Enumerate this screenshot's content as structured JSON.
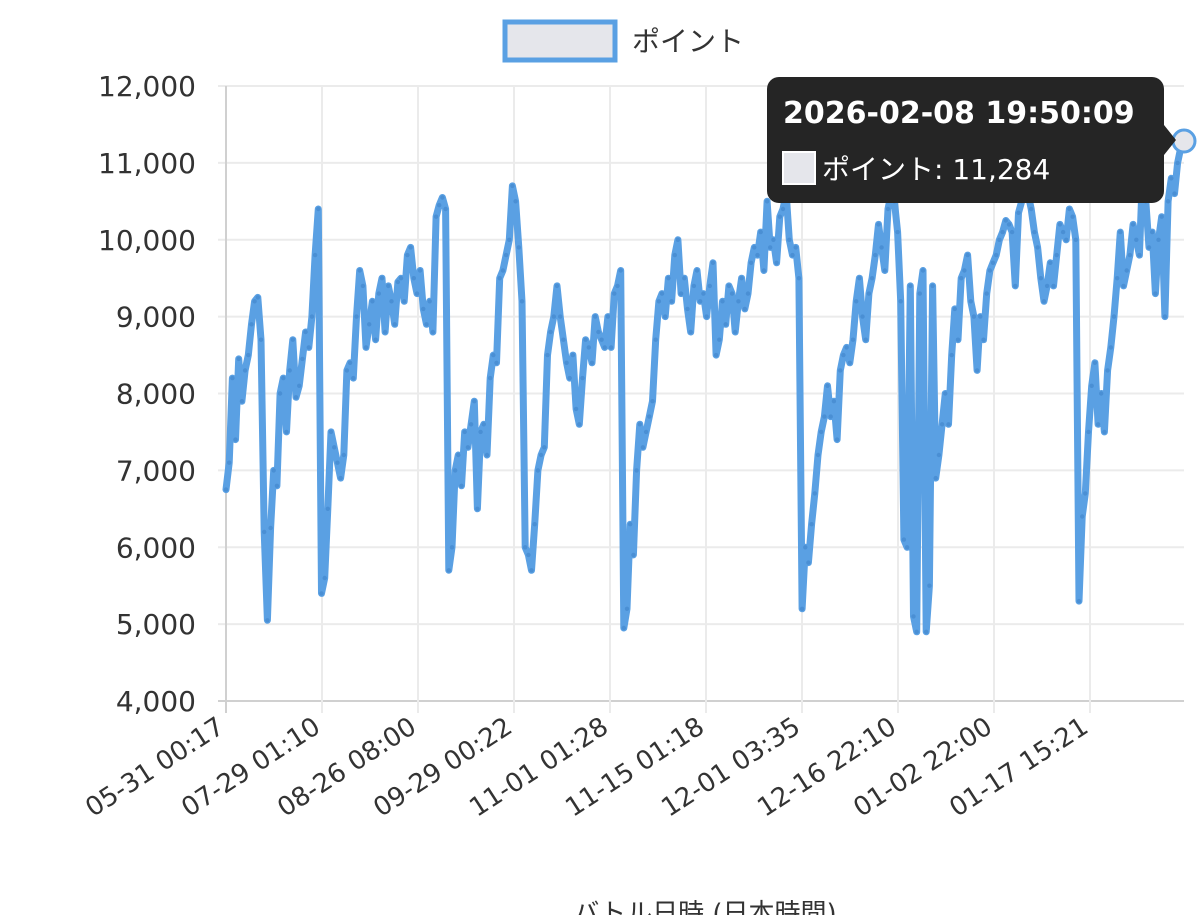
{
  "chart_data": {
    "type": "line",
    "legend": {
      "label": "ポイント",
      "placement": "top-center"
    },
    "xlabel": "バトル日時 (日本時間)",
    "ylabel": "",
    "ylim": [
      4000,
      12000
    ],
    "yticks": [
      "4,000",
      "5,000",
      "6,000",
      "7,000",
      "8,000",
      "9,000",
      "10,000",
      "11,000",
      "12,000"
    ],
    "xticks": [
      "05-31 00:17",
      "07-29 01:10",
      "08-26 08:00",
      "09-29 00:22",
      "11-01 01:28",
      "11-15 01:18",
      "12-01 03:35",
      "12-16 22:10",
      "01-02 22:00",
      "01-17 15:21"
    ],
    "grid": true,
    "colors": {
      "line": "#5aa0e3",
      "point": "#4a8fd4",
      "legend_fill": "#e5e6eb",
      "tooltip_bg": "#252525"
    },
    "tooltip": {
      "title": "2026-02-08 19:50:09",
      "label": "ポイント: 11,284"
    },
    "series": [
      {
        "name": "ポイント",
        "values": [
          6750,
          7100,
          8200,
          7400,
          8450,
          7900,
          8300,
          8500,
          8900,
          9200,
          9250,
          8700,
          6200,
          5050,
          6250,
          7000,
          6800,
          8000,
          8200,
          7500,
          8300,
          8700,
          7950,
          8100,
          8450,
          8800,
          8600,
          9000,
          9800,
          10400,
          5400,
          5600,
          6500,
          7500,
          7300,
          7100,
          6900,
          7200,
          8300,
          8400,
          8200,
          9000,
          9600,
          9400,
          8600,
          8900,
          9200,
          8700,
          9300,
          9500,
          8800,
          9400,
          9200,
          8900,
          9450,
          9500,
          9200,
          9800,
          9900,
          9500,
          9300,
          9600,
          9100,
          8900,
          9200,
          8800,
          10300,
          10450,
          10550,
          10400,
          5700,
          6000,
          7000,
          7200,
          6800,
          7500,
          7300,
          7600,
          7900,
          6500,
          7500,
          7600,
          7200,
          8200,
          8500,
          8400,
          9500,
          9600,
          9800,
          10000,
          10700,
          10500,
          9900,
          9200,
          6000,
          5900,
          5700,
          6300,
          7000,
          7200,
          7300,
          8500,
          8800,
          9000,
          9400,
          9000,
          8700,
          8400,
          8200,
          8500,
          7800,
          7600,
          8200,
          8700,
          8600,
          8400,
          9000,
          8800,
          8700,
          8600,
          9000,
          8600,
          9300,
          9400,
          9600,
          4950,
          5200,
          6300,
          5900,
          7000,
          7600,
          7300,
          7500,
          7700,
          7900,
          8700,
          9200,
          9300,
          9000,
          9500,
          9200,
          9800,
          10000,
          9300,
          9500,
          9100,
          8800,
          9400,
          9600,
          9200,
          9300,
          9000,
          9400,
          9700,
          8500,
          8700,
          9200,
          8900,
          9400,
          9300,
          8800,
          9200,
          9500,
          9100,
          9300,
          9700,
          9900,
          9800,
          10100,
          9600,
          10500,
          9900,
          10000,
          9700,
          10300,
          10400,
          10600,
          10000,
          9800,
          9900,
          9500,
          5200,
          6000,
          5800,
          6300,
          6700,
          7200,
          7500,
          7700,
          8100,
          7700,
          7900,
          7400,
          8300,
          8500,
          8600,
          8400,
          8700,
          9200,
          9500,
          9000,
          8700,
          9300,
          9500,
          9800,
          10200,
          9900,
          9600,
          10400,
          10600,
          10500,
          10100,
          9200,
          6100,
          6000,
          9400,
          5100,
          4900,
          9300,
          9600,
          4900,
          5500,
          9400,
          6900,
          7200,
          7600,
          8000,
          7600,
          8500,
          9100,
          8700,
          9500,
          9600,
          9800,
          9200,
          9000,
          8300,
          9000,
          8700,
          9300,
          9600,
          9700,
          9800,
          10000,
          10100,
          10250,
          10200,
          10100,
          9400,
          10350,
          10500,
          10700,
          10600,
          10400,
          10100,
          9900,
          9500,
          9200,
          9400,
          9700,
          9400,
          9800,
          10200,
          10100,
          10000,
          10400,
          10300,
          10000,
          5300,
          6400,
          6700,
          7500,
          8100,
          8400,
          7600,
          8000,
          7500,
          8300,
          8600,
          9000,
          9500,
          10100,
          9400,
          9600,
          9800,
          10200,
          10000,
          9800,
          10900,
          10500,
          9900,
          10100,
          9300,
          10000,
          10300,
          9000,
          10500,
          10800,
          10600,
          11000,
          11200,
          11284
        ]
      }
    ]
  }
}
